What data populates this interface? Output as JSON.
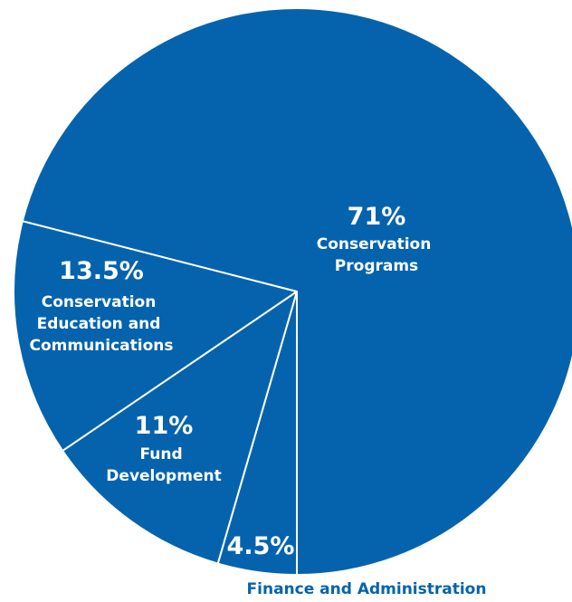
{
  "chart_data": {
    "type": "pie",
    "title": "",
    "colors": {
      "fill": "#0563ad",
      "stroke": "#ffffff",
      "outside_label": "#0563ad"
    },
    "slices": [
      {
        "key": "programs",
        "value": 71,
        "label": "71%",
        "category": "Conservation Programs"
      },
      {
        "key": "education",
        "value": 13.5,
        "label": "13.5%",
        "category": "Conservation Education and Communications"
      },
      {
        "key": "fund",
        "value": 11,
        "label": "11%",
        "category": "Fund Development"
      },
      {
        "key": "finance",
        "value": 4.5,
        "label": "4.5%",
        "category": "Finance and Administration"
      }
    ]
  }
}
